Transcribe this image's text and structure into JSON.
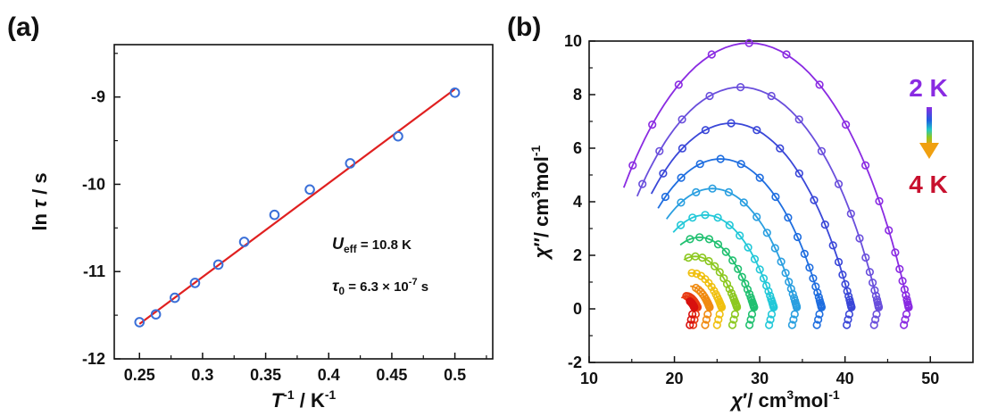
{
  "panels": {
    "a": "(a)",
    "b": "(b)"
  },
  "annotation_a": {
    "ueff_symbol": "U",
    "ueff_sub": "eff",
    "ueff_value": " = 10.8 K",
    "tau_symbol": "τ",
    "tau_sub": "0",
    "tau_value_pre": " = 6.3 × 10",
    "tau_exp": "-7",
    "tau_unit": " s"
  },
  "legend_b": {
    "top": "2 K",
    "bottom": "4 K",
    "top_color": "#8a2be2",
    "bottom_color": "#c8102e"
  },
  "chart_data": [
    {
      "id": "a",
      "type": "scatter",
      "title": "",
      "xlabel": {
        "sym": "T",
        "sup1": "-1",
        "rest": " / K",
        "sup2": "-1"
      },
      "ylabel": {
        "pre": "ln ",
        "sym": "τ",
        "rest": " / s"
      },
      "xlim": [
        0.23,
        0.53
      ],
      "ylim": [
        -12,
        -8.4
      ],
      "xticks": [
        0.25,
        0.3,
        0.35,
        0.4,
        0.45,
        0.5
      ],
      "xtick_labels": [
        "0.25",
        "0.3",
        "0.35",
        "0.4",
        "0.45",
        "0.5"
      ],
      "yticks": [
        -12,
        -11,
        -10,
        -9
      ],
      "ytick_labels": [
        "-12",
        "-11",
        "-10",
        "-9"
      ],
      "marker_color": "#3a6fd8",
      "fit_color": "#e02020",
      "points": [
        [
          0.25,
          -11.58
        ],
        [
          0.263,
          -11.49
        ],
        [
          0.278,
          -11.3
        ],
        [
          0.294,
          -11.13
        ],
        [
          0.3125,
          -10.92
        ],
        [
          0.333,
          -10.66
        ],
        [
          0.357,
          -10.35
        ],
        [
          0.385,
          -10.06
        ],
        [
          0.417,
          -9.76
        ],
        [
          0.455,
          -9.45
        ],
        [
          0.5,
          -8.95
        ]
      ],
      "fit": [
        [
          0.25,
          -11.6
        ],
        [
          0.5,
          -8.91
        ]
      ]
    },
    {
      "id": "b",
      "type": "scatter",
      "title": "",
      "xlabel": {
        "sym": "χ",
        "prime": "′",
        "rest": "/ cm",
        "sup1": "3",
        "rest2": "mol",
        "sup2": "-1"
      },
      "ylabel": {
        "sym": "χ",
        "prime": "″",
        "rest": "/ cm",
        "sup1": "3",
        "rest2": "mol",
        "sup2": "-1"
      },
      "xlim": [
        10,
        55
      ],
      "ylim": [
        -2,
        10
      ],
      "xticks": [
        10,
        20,
        30,
        40,
        50
      ],
      "xtick_labels": [
        "10",
        "20",
        "30",
        "40",
        "50"
      ],
      "yticks": [
        -2,
        0,
        2,
        4,
        6,
        8,
        10
      ],
      "ytick_labels": [
        "-2",
        "0",
        "2",
        "4",
        "6",
        "8",
        "10"
      ],
      "series": [
        {
          "temp_index": 0,
          "color": "#8a2be2",
          "chi_s": 10.0,
          "chi_t": 47.5,
          "alpha": 0.38,
          "x_start": 14.5
        },
        {
          "temp_index": 1,
          "color": "#6a4fdc",
          "chi_s": 11.5,
          "chi_t": 44.0,
          "alpha": 0.4,
          "x_start": 16.0
        },
        {
          "temp_index": 2,
          "color": "#3a47d8",
          "chi_s": 12.5,
          "chi_t": 40.8,
          "alpha": 0.42,
          "x_start": 17.5
        },
        {
          "temp_index": 3,
          "color": "#1f6ee0",
          "chi_s": 13.5,
          "chi_t": 37.3,
          "alpha": 0.44,
          "x_start": 18.5
        },
        {
          "temp_index": 4,
          "color": "#2a9fe0",
          "chi_s": 14.5,
          "chi_t": 34.4,
          "alpha": 0.46,
          "x_start": 19.5
        },
        {
          "temp_index": 5,
          "color": "#22c8d8",
          "chi_s": 15.5,
          "chi_t": 31.7,
          "alpha": 0.48,
          "x_start": 20.3
        },
        {
          "temp_index": 6,
          "color": "#20c070",
          "chi_s": 16.5,
          "chi_t": 29.4,
          "alpha": 0.5,
          "x_start": 21.0
        },
        {
          "temp_index": 7,
          "color": "#8cc820",
          "chi_s": 17.5,
          "chi_t": 27.4,
          "alpha": 0.52,
          "x_start": 21.5
        },
        {
          "temp_index": 8,
          "color": "#f0c010",
          "chi_s": 18.5,
          "chi_t": 25.6,
          "alpha": 0.54,
          "x_start": 22.0
        },
        {
          "temp_index": 9,
          "color": "#f08a10",
          "chi_s": 19.5,
          "chi_t": 24.2,
          "alpha": 0.56,
          "x_start": 22.3
        },
        {
          "temp_index": 10,
          "color": "#e83a12",
          "chi_s": 20.0,
          "chi_t": 22.8,
          "alpha": 0.58,
          "x_start": 21.3
        },
        {
          "temp_index": 11,
          "color": "#d8100e",
          "chi_s": 20.5,
          "chi_t": 22.4,
          "alpha": 0.58,
          "x_start": 21.8
        }
      ]
    }
  ]
}
